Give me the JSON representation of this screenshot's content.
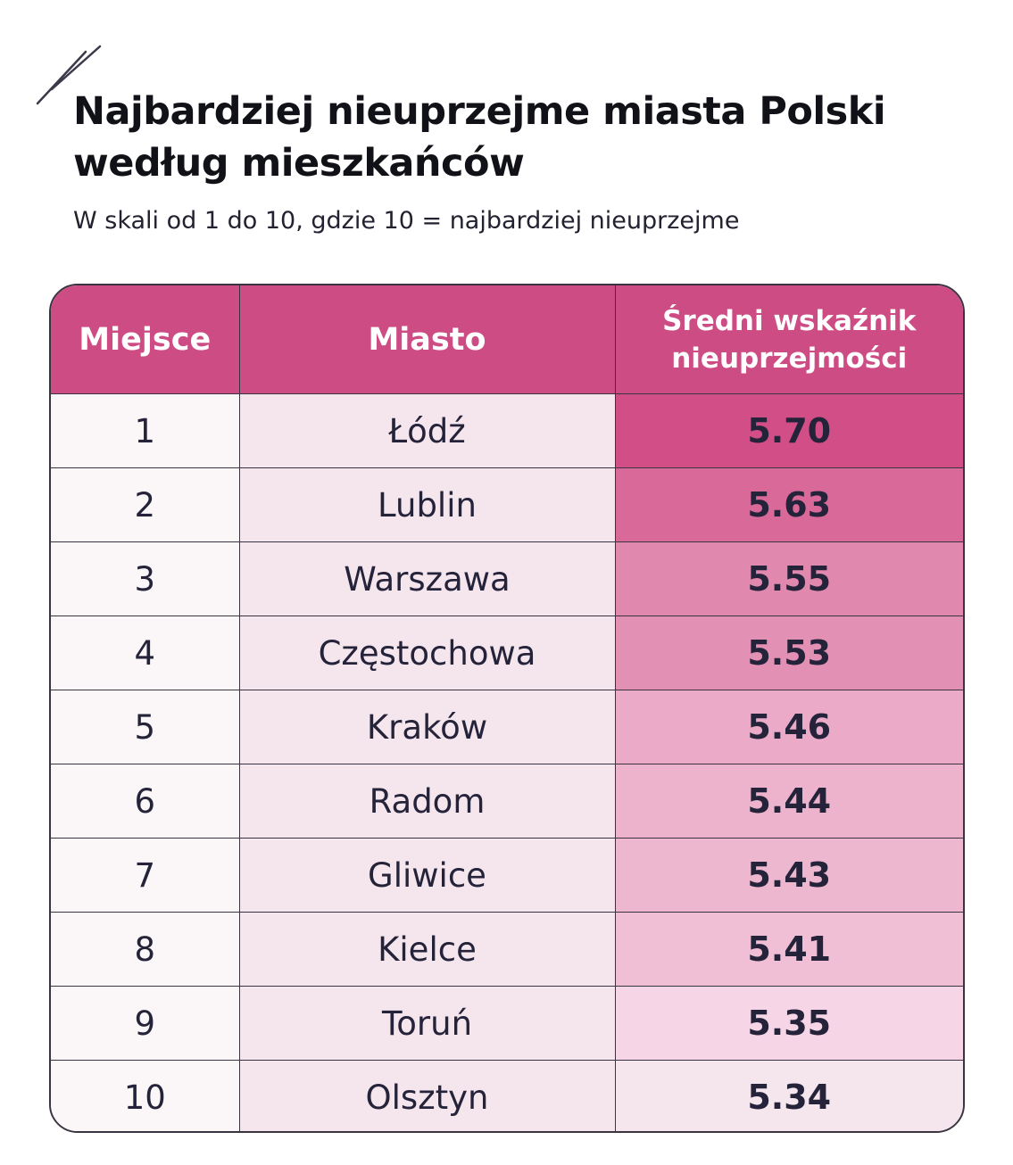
{
  "header": {
    "title_line1": "Najbardziej nieuprzejme miasta Polski",
    "title_line2": "według mieszkańców",
    "subtitle": "W skali od 1 do 10, gdzie 10 = najbardziej nieuprzejme"
  },
  "colors": {
    "header_bg": "#cd4c84",
    "rank_cell_bg": "#fbf7f9",
    "city_cell_bg": "#f5e6ed",
    "value_scale_high": "#d24e86",
    "value_scale_low": "#f6d6e6",
    "last_row_value_bg": "#f5e6ed"
  },
  "chart_data": {
    "type": "table",
    "title": "Najbardziej nieuprzejme miasta Polski według mieszkańców",
    "subtitle": "W skali od 1 do 10, gdzie 10 = najbardziej nieuprzejme",
    "columns": [
      "Miejsce",
      "Miasto",
      "Średni wskaźnik nieuprzejmości"
    ],
    "column_header_lines": {
      "value_line1": "Średni wskaźnik",
      "value_line2": "nieuprzejmości"
    },
    "rows": [
      {
        "rank": "1",
        "city": "Łódź",
        "value": "5.70"
      },
      {
        "rank": "2",
        "city": "Lublin",
        "value": "5.63"
      },
      {
        "rank": "3",
        "city": "Warszawa",
        "value": "5.55"
      },
      {
        "rank": "4",
        "city": "Częstochowa",
        "value": "5.53"
      },
      {
        "rank": "5",
        "city": "Kraków",
        "value": "5.46"
      },
      {
        "rank": "6",
        "city": "Radom",
        "value": "5.44"
      },
      {
        "rank": "7",
        "city": "Gliwice",
        "value": "5.43"
      },
      {
        "rank": "8",
        "city": "Kielce",
        "value": "5.41"
      },
      {
        "rank": "9",
        "city": "Toruń",
        "value": "5.35"
      },
      {
        "rank": "10",
        "city": "Olsztyn",
        "value": "5.34"
      }
    ]
  }
}
